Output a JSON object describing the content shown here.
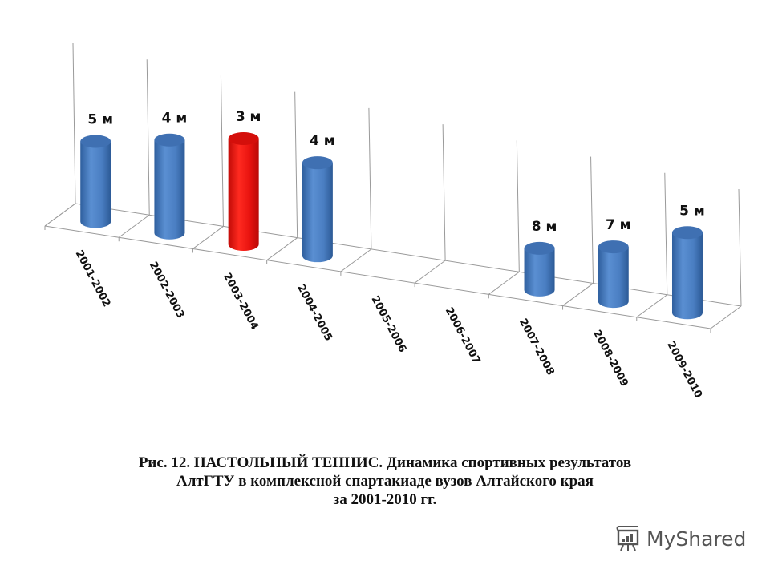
{
  "chart_data": {
    "type": "bar",
    "subtype": "3d-cylinder",
    "title": "Рис. 12. НАСТОЛЬНЫЙ ТЕННИС. Динамика спортивных результатов АлтГТУ в комплексной спартакиаде вузов Алтайского края за 2001-2010 гг.",
    "xlabel": "",
    "ylabel": "",
    "categories": [
      "2001-2002",
      "2002-2003",
      "2003-2004",
      "2004-2005",
      "2005-2006",
      "2006-2007",
      "2007-2008",
      "2008-2009",
      "2009-2010"
    ],
    "values": [
      5,
      4,
      3,
      4,
      null,
      null,
      8,
      7,
      5
    ],
    "value_labels": [
      "5 м",
      "4 м",
      "3 м",
      "4 м",
      "",
      "",
      "8 м",
      "7 м",
      "5 м"
    ],
    "value_meaning": "place (место) — lower place drawn as taller cylinder",
    "highlighted_index": 2,
    "colors": {
      "default": "#4a7ec2",
      "highlight": "#e8130f"
    },
    "grid": true,
    "legend": "none"
  },
  "caption": {
    "line1": "Рис. 12. НАСТОЛЬНЫЙ ТЕННИС. Динамика спортивных результатов",
    "line2": "АлтГТУ в комплексной спартакиаде вузов Алтайского края",
    "line3": "за 2001-2010  гг."
  },
  "watermark": {
    "text": "MyShared",
    "icon": "presentation-board-icon"
  }
}
